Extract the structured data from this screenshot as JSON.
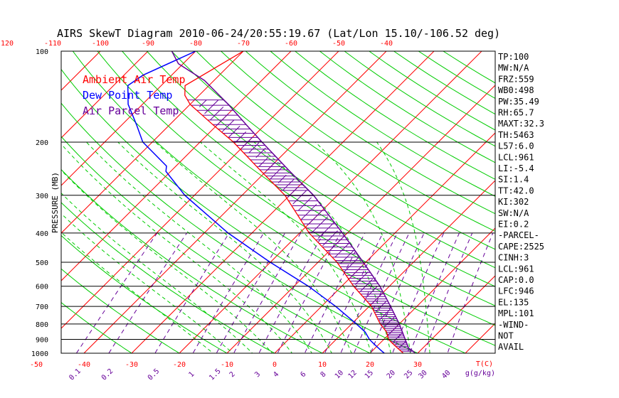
{
  "chart_data": {
    "type": "line",
    "title": "AIRS SkewT Diagram 2010-06-24/20:55:19.67 (Lat/Lon 15.10/-106.52 deg)",
    "ylabel": "PRESSURE (MB)",
    "y_scale": "log",
    "ylim": [
      1000,
      100
    ],
    "pressure_ticks": [
      100,
      200,
      300,
      400,
      500,
      600,
      700,
      800,
      900,
      1000
    ],
    "bottom_temp_ticks": [
      -50,
      -40,
      -30,
      -20,
      -10,
      0,
      10,
      20,
      30
    ],
    "bottom_temp_unit_label": "T(C)",
    "top_temp_ticks": [
      -120,
      -110,
      -100,
      -90,
      -80,
      -70,
      -60,
      -50,
      -40
    ],
    "mixing_ratio_ticks": [
      "0.1",
      "0.2",
      "0.5",
      "1",
      "1.5",
      "2",
      "3",
      "4",
      "6",
      "8",
      "10",
      "12",
      "15",
      "20",
      "25",
      "30",
      "40"
    ],
    "mixing_ratio_unit_label": "g(g/kg)",
    "colors": {
      "ambient": "#ff0000",
      "dewpoint": "#0000ff",
      "parcel": "#660099",
      "isotherm": "#ff0000",
      "dry_adiabat": "#00cc00",
      "moist_adiabat": "#00cc00",
      "mixing_ratio": "#660099",
      "isobar": "#000000"
    },
    "legend": {
      "placement": "top-left",
      "entries": [
        {
          "label": "Ambient Air Temp",
          "color": "#ff0000"
        },
        {
          "label": "Dew Point Temp",
          "color": "#0000ff"
        },
        {
          "label": "Air Parcel Temp",
          "color": "#660099"
        }
      ]
    },
    "series": [
      {
        "name": "Ambient Air Temp",
        "points": [
          [
            1000,
            27
          ],
          [
            975,
            25.5
          ],
          [
            950,
            24
          ],
          [
            925,
            22.5
          ],
          [
            900,
            21
          ],
          [
            850,
            19
          ],
          [
            800,
            16
          ],
          [
            700,
            10.5
          ],
          [
            600,
            2.5
          ],
          [
            500,
            -6
          ],
          [
            400,
            -18
          ],
          [
            300,
            -31
          ],
          [
            250,
            -41
          ],
          [
            200,
            -53
          ],
          [
            175,
            -61
          ],
          [
            150,
            -70
          ],
          [
            140,
            -73
          ],
          [
            130,
            -75
          ],
          [
            100,
            -70
          ]
        ]
      },
      {
        "name": "Dew Point Temp",
        "points": [
          [
            1000,
            23
          ],
          [
            975,
            21.5
          ],
          [
            950,
            20
          ],
          [
            925,
            18.5
          ],
          [
            900,
            17
          ],
          [
            850,
            14.5
          ],
          [
            800,
            11
          ],
          [
            700,
            3
          ],
          [
            600,
            -7
          ],
          [
            500,
            -20
          ],
          [
            400,
            -35
          ],
          [
            300,
            -52
          ],
          [
            250,
            -61
          ],
          [
            240,
            -62
          ],
          [
            200,
            -72
          ],
          [
            175,
            -77
          ],
          [
            150,
            -83
          ],
          [
            130,
            -87
          ],
          [
            120,
            -86
          ],
          [
            100,
            -80
          ]
        ]
      },
      {
        "name": "Air Parcel Temp",
        "points": [
          [
            1000,
            29.5
          ],
          [
            975,
            28
          ],
          [
            961,
            27
          ],
          [
            900,
            24.5
          ],
          [
            800,
            20
          ],
          [
            700,
            14.5
          ],
          [
            600,
            8
          ],
          [
            500,
            -0.5
          ],
          [
            400,
            -11
          ],
          [
            300,
            -25
          ],
          [
            250,
            -35
          ],
          [
            200,
            -47
          ],
          [
            175,
            -54
          ],
          [
            150,
            -62
          ],
          [
            125,
            -72
          ],
          [
            110,
            -81
          ],
          [
            100,
            -85
          ]
        ]
      }
    ],
    "indices": [
      "TP:100",
      "MW:N/A",
      "FRZ:559",
      "WB0:498",
      "PW:35.49",
      "RH:65.7",
      "MAXT:32.3",
      "TH:5463",
      "L57:6.0",
      "LCL:961",
      "LI:-5.4",
      "SI:1.4",
      "TT:42.0",
      "KI:302",
      "SW:N/A",
      "EI:0.2",
      "-PARCEL-",
      "CAPE:2525",
      "CINH:3",
      "LCL:961",
      "CAP:0.0",
      "LFC:946",
      "EL:135",
      "MPL:101",
      "-WIND-",
      "NOT",
      "AVAIL"
    ]
  }
}
